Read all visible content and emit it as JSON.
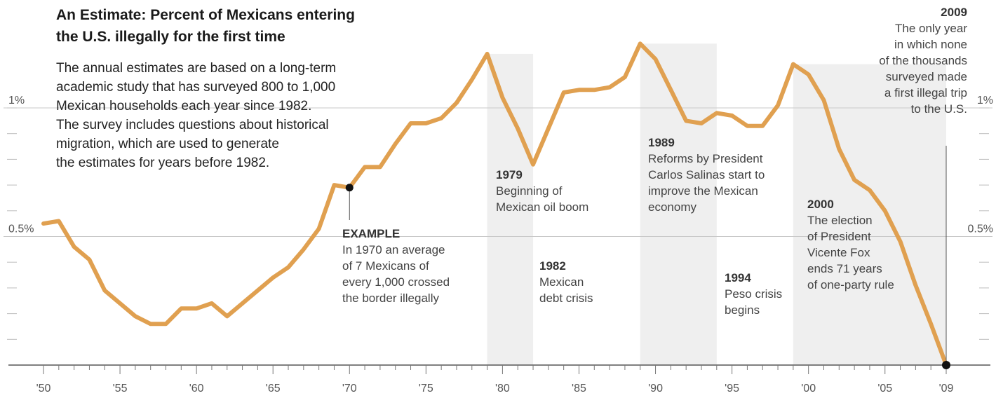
{
  "header": {
    "title_line1": "An Estimate: Percent of Mexicans entering",
    "title_line2": "the U.S. illegally for the first time",
    "description_lines": [
      "The annual estimates are based on a long-term",
      "academic study that has surveyed 800 to 1,000",
      "Mexican households each year since 1982.",
      "The survey includes questions about historical",
      "migration, which are used to generate",
      "the estimates for years before 1982."
    ]
  },
  "chart_data": {
    "type": "line",
    "ylim": [
      0,
      1.1
    ],
    "y_labels": [
      {
        "value": 0.5,
        "label": "0.5%"
      },
      {
        "value": 1.0,
        "label": "1%"
      }
    ],
    "y_minor_ticks": [
      0.1,
      0.2,
      0.3,
      0.4,
      0.6,
      0.7,
      0.8,
      0.9,
      1.0
    ],
    "xlim": [
      1950,
      2009
    ],
    "x_ticks": [
      {
        "value": 1950,
        "label": "'50"
      },
      {
        "value": 1955,
        "label": "'55"
      },
      {
        "value": 1960,
        "label": "'60"
      },
      {
        "value": 1965,
        "label": "'65"
      },
      {
        "value": 1970,
        "label": "'70"
      },
      {
        "value": 1975,
        "label": "'75"
      },
      {
        "value": 1980,
        "label": "'80"
      },
      {
        "value": 1985,
        "label": "'85"
      },
      {
        "value": 1990,
        "label": "'90"
      },
      {
        "value": 1995,
        "label": "'95"
      },
      {
        "value": 2000,
        "label": "'00"
      },
      {
        "value": 2005,
        "label": "'05"
      },
      {
        "value": 2009,
        "label": "'09"
      }
    ],
    "line_color": "#e0a050",
    "shade_color": "#efefef",
    "series": [
      {
        "x": [
          1950,
          1951,
          1952,
          1953,
          1954,
          1955,
          1956,
          1957,
          1958,
          1959,
          1960,
          1961,
          1962,
          1963,
          1964,
          1965,
          1966,
          1967,
          1968,
          1969,
          1970,
          1971,
          1972,
          1973,
          1974,
          1975,
          1976,
          1977,
          1978,
          1979,
          1980,
          1981,
          1982,
          1983,
          1984,
          1985,
          1986,
          1987,
          1988,
          1989,
          1990,
          1991,
          1992,
          1993,
          1994,
          1995,
          1996,
          1997,
          1998,
          1999,
          2000,
          2001,
          2002,
          2003,
          2004,
          2005,
          2006,
          2007,
          2008,
          2009
        ],
        "y": [
          0.55,
          0.56,
          0.46,
          0.41,
          0.29,
          0.24,
          0.19,
          0.16,
          0.16,
          0.22,
          0.22,
          0.24,
          0.19,
          0.24,
          0.29,
          0.34,
          0.38,
          0.45,
          0.53,
          0.7,
          0.69,
          0.77,
          0.77,
          0.86,
          0.94,
          0.94,
          0.96,
          1.02,
          1.11,
          1.21,
          1.04,
          0.92,
          0.78,
          0.92,
          1.06,
          1.07,
          1.07,
          1.08,
          1.12,
          1.25,
          1.19,
          1.07,
          0.95,
          0.94,
          0.98,
          0.97,
          0.93,
          0.93,
          1.01,
          1.17,
          1.13,
          1.03,
          0.84,
          0.72,
          0.68,
          0.6,
          0.48,
          0.31,
          0.16,
          0.0
        ]
      }
    ],
    "shaded_periods": [
      [
        1979,
        1982
      ],
      [
        1989,
        1994
      ],
      [
        1999,
        2009
      ]
    ],
    "example_point": {
      "x": 1970,
      "y": 0.69
    },
    "end_point": {
      "x": 2009,
      "y": 0.0
    },
    "annotations": [
      {
        "year": "EXAMPLE",
        "lines": [
          "In 1970 an average",
          "of 7 Mexicans of",
          "every 1,000 crossed",
          "the border illegally"
        ]
      },
      {
        "year": "1979",
        "lines": [
          "Beginning of",
          "Mexican oil boom"
        ]
      },
      {
        "year": "1982",
        "lines": [
          "Mexican",
          "debt crisis"
        ]
      },
      {
        "year": "1989",
        "lines": [
          "Reforms by President",
          "Carlos Salinas start to",
          "improve the Mexican",
          "economy"
        ]
      },
      {
        "year": "1994",
        "lines": [
          "Peso crisis",
          "begins"
        ]
      },
      {
        "year": "2000",
        "lines": [
          "The election",
          "of President",
          "Vicente Fox",
          "ends 71 years",
          "of one-party rule"
        ]
      },
      {
        "year": "2009",
        "lines": [
          "The only year",
          "in which none",
          "of the thousands",
          "surveyed made",
          "a first illegal trip",
          "to the U.S."
        ]
      }
    ]
  }
}
